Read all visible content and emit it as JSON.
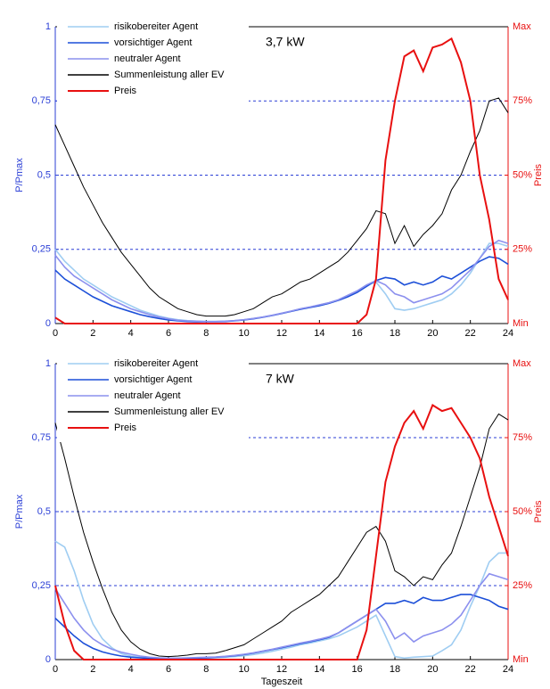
{
  "chart_data": [
    {
      "type": "line",
      "annotation": "3,7 kW",
      "ylabel": "P/Pmax",
      "y2label": "Preis",
      "x": [
        0,
        0.5,
        1,
        1.5,
        2,
        2.5,
        3,
        3.5,
        4,
        4.5,
        5,
        5.5,
        6,
        6.5,
        7,
        7.5,
        8,
        8.5,
        9,
        9.5,
        10,
        10.5,
        11,
        11.5,
        12,
        12.5,
        13,
        13.5,
        14,
        14.5,
        15,
        15.5,
        16,
        16.5,
        17,
        17.5,
        18,
        18.5,
        19,
        19.5,
        20,
        20.5,
        21,
        21.5,
        22,
        22.5,
        23,
        23.5,
        24
      ],
      "xlim": [
        0,
        24
      ],
      "xticks": [
        0,
        2,
        4,
        6,
        8,
        10,
        12,
        14,
        16,
        18,
        20,
        22,
        24
      ],
      "ylim": [
        0,
        1
      ],
      "yticks": [
        0,
        {
          "value": 0.25,
          "label": "0,25"
        },
        {
          "value": 0.5,
          "label": "0,5"
        },
        {
          "value": 0.75,
          "label": "0,75"
        },
        1
      ],
      "y2lim": [
        0,
        100
      ],
      "y2ticks": [
        {
          "value": 0,
          "label": "Min"
        },
        {
          "value": 25,
          "label": "25%"
        },
        {
          "value": 50,
          "label": "50%"
        },
        {
          "value": 75,
          "label": "75%"
        },
        {
          "value": 100,
          "label": "Max"
        }
      ],
      "grid": true,
      "legend": "upper left",
      "series": [
        {
          "name": "risikobereiter Agent",
          "color": "#9fcdf2",
          "values": [
            0.25,
            0.21,
            0.18,
            0.15,
            0.13,
            0.11,
            0.09,
            0.075,
            0.06,
            0.045,
            0.035,
            0.025,
            0.018,
            0.013,
            0.01,
            0.008,
            0.007,
            0.007,
            0.008,
            0.01,
            0.013,
            0.017,
            0.022,
            0.028,
            0.035,
            0.042,
            0.05,
            0.056,
            0.063,
            0.07,
            0.08,
            0.095,
            0.11,
            0.13,
            0.14,
            0.1,
            0.05,
            0.045,
            0.05,
            0.06,
            0.07,
            0.08,
            0.1,
            0.13,
            0.17,
            0.22,
            0.27,
            0.27,
            0.26
          ]
        },
        {
          "name": "vorsichtiger Agent",
          "color": "#1c4fd8",
          "values": [
            0.18,
            0.15,
            0.13,
            0.11,
            0.09,
            0.075,
            0.06,
            0.05,
            0.04,
            0.03,
            0.023,
            0.017,
            0.012,
            0.009,
            0.007,
            0.006,
            0.006,
            0.006,
            0.007,
            0.009,
            0.012,
            0.016,
            0.021,
            0.027,
            0.034,
            0.041,
            0.048,
            0.054,
            0.06,
            0.068,
            0.078,
            0.09,
            0.105,
            0.125,
            0.145,
            0.155,
            0.15,
            0.13,
            0.14,
            0.13,
            0.14,
            0.16,
            0.15,
            0.17,
            0.19,
            0.21,
            0.225,
            0.22,
            0.2
          ]
        },
        {
          "name": "neutraler Agent",
          "color": "#8c90ee",
          "values": [
            0.23,
            0.19,
            0.16,
            0.14,
            0.12,
            0.1,
            0.08,
            0.065,
            0.05,
            0.04,
            0.03,
            0.022,
            0.016,
            0.011,
            0.009,
            0.008,
            0.007,
            0.007,
            0.008,
            0.01,
            0.013,
            0.017,
            0.022,
            0.028,
            0.035,
            0.042,
            0.05,
            0.056,
            0.063,
            0.07,
            0.08,
            0.095,
            0.11,
            0.13,
            0.145,
            0.13,
            0.1,
            0.09,
            0.07,
            0.08,
            0.09,
            0.1,
            0.12,
            0.15,
            0.18,
            0.22,
            0.26,
            0.28,
            0.27
          ]
        },
        {
          "name": "Summenleistung aller EV",
          "color": "#000000",
          "values": [
            0.67,
            0.6,
            0.53,
            0.46,
            0.4,
            0.34,
            0.29,
            0.24,
            0.2,
            0.16,
            0.12,
            0.09,
            0.07,
            0.05,
            0.04,
            0.03,
            0.025,
            0.025,
            0.025,
            0.03,
            0.04,
            0.05,
            0.07,
            0.09,
            0.1,
            0.12,
            0.14,
            0.15,
            0.17,
            0.19,
            0.21,
            0.24,
            0.28,
            0.32,
            0.38,
            0.37,
            0.27,
            0.33,
            0.26,
            0.3,
            0.33,
            0.37,
            0.45,
            0.5,
            0.58,
            0.65,
            0.75,
            0.76,
            0.71
          ]
        },
        {
          "name": "Preis",
          "color": "#e81010",
          "axis": "y2",
          "values": [
            2,
            0,
            0,
            0,
            0,
            0,
            0,
            0,
            0,
            0,
            0,
            0,
            0,
            0,
            0,
            0,
            0,
            0,
            0,
            0,
            0,
            0,
            0,
            0,
            0,
            0,
            0,
            0,
            0,
            0,
            0,
            0,
            0,
            3,
            15,
            55,
            75,
            90,
            92,
            85,
            93,
            94,
            96,
            88,
            75,
            50,
            35,
            15,
            8
          ]
        }
      ]
    },
    {
      "type": "line",
      "annotation": "7 kW",
      "ylabel": "P/Pmax",
      "y2label": "Preis",
      "xlabel": "Tageszeit",
      "x": [
        0,
        0.5,
        1,
        1.5,
        2,
        2.5,
        3,
        3.5,
        4,
        4.5,
        5,
        5.5,
        6,
        6.5,
        7,
        7.5,
        8,
        8.5,
        9,
        9.5,
        10,
        10.5,
        11,
        11.5,
        12,
        12.5,
        13,
        13.5,
        14,
        14.5,
        15,
        15.5,
        16,
        16.5,
        17,
        17.5,
        18,
        18.5,
        19,
        19.5,
        20,
        20.5,
        21,
        21.5,
        22,
        22.5,
        23,
        23.5,
        24
      ],
      "xlim": [
        0,
        24
      ],
      "xticks": [
        0,
        2,
        4,
        6,
        8,
        10,
        12,
        14,
        16,
        18,
        20,
        22,
        24
      ],
      "ylim": [
        0,
        1
      ],
      "yticks": [
        0,
        {
          "value": 0.25,
          "label": "0,25"
        },
        {
          "value": 0.5,
          "label": "0,5"
        },
        {
          "value": 0.75,
          "label": "0,75"
        },
        1
      ],
      "y2lim": [
        0,
        100
      ],
      "y2ticks": [
        {
          "value": 0,
          "label": "Min"
        },
        {
          "value": 25,
          "label": "25%"
        },
        {
          "value": 50,
          "label": "50%"
        },
        {
          "value": 75,
          "label": "75%"
        },
        {
          "value": 100,
          "label": "Max"
        }
      ],
      "grid": true,
      "legend": "upper left",
      "series": [
        {
          "name": "risikobereiter Agent",
          "color": "#9fcdf2",
          "values": [
            0.4,
            0.38,
            0.3,
            0.2,
            0.12,
            0.07,
            0.04,
            0.02,
            0.012,
            0.008,
            0.005,
            0.004,
            0.003,
            0.003,
            0.003,
            0.004,
            0.005,
            0.006,
            0.008,
            0.01,
            0.013,
            0.017,
            0.022,
            0.028,
            0.035,
            0.042,
            0.05,
            0.056,
            0.063,
            0.07,
            0.08,
            0.095,
            0.11,
            0.13,
            0.15,
            0.08,
            0.01,
            0.005,
            0.008,
            0.01,
            0.012,
            0.03,
            0.05,
            0.1,
            0.18,
            0.25,
            0.33,
            0.36,
            0.36
          ]
        },
        {
          "name": "vorsichtiger Agent",
          "color": "#1c4fd8",
          "values": [
            0.14,
            0.11,
            0.08,
            0.055,
            0.038,
            0.026,
            0.018,
            0.012,
            0.008,
            0.006,
            0.004,
            0.003,
            0.003,
            0.003,
            0.004,
            0.005,
            0.006,
            0.008,
            0.01,
            0.013,
            0.017,
            0.022,
            0.028,
            0.034,
            0.04,
            0.047,
            0.054,
            0.06,
            0.067,
            0.075,
            0.09,
            0.11,
            0.13,
            0.15,
            0.17,
            0.19,
            0.19,
            0.2,
            0.19,
            0.21,
            0.2,
            0.2,
            0.21,
            0.22,
            0.22,
            0.21,
            0.2,
            0.18,
            0.17
          ]
        },
        {
          "name": "neutraler Agent",
          "color": "#8c90ee",
          "values": [
            0.24,
            0.19,
            0.14,
            0.1,
            0.07,
            0.05,
            0.035,
            0.025,
            0.018,
            0.012,
            0.008,
            0.006,
            0.005,
            0.005,
            0.006,
            0.007,
            0.008,
            0.009,
            0.011,
            0.014,
            0.018,
            0.023,
            0.029,
            0.035,
            0.042,
            0.049,
            0.056,
            0.062,
            0.069,
            0.077,
            0.09,
            0.11,
            0.13,
            0.15,
            0.17,
            0.13,
            0.07,
            0.09,
            0.06,
            0.08,
            0.09,
            0.1,
            0.12,
            0.15,
            0.2,
            0.25,
            0.29,
            0.28,
            0.27
          ]
        },
        {
          "name": "Summenleistung aller EV",
          "color": "#000000",
          "values": [
            0.8,
            0.68,
            0.55,
            0.43,
            0.33,
            0.24,
            0.16,
            0.1,
            0.06,
            0.035,
            0.02,
            0.012,
            0.01,
            0.012,
            0.015,
            0.02,
            0.02,
            0.022,
            0.03,
            0.04,
            0.05,
            0.07,
            0.09,
            0.11,
            0.13,
            0.16,
            0.18,
            0.2,
            0.22,
            0.25,
            0.28,
            0.33,
            0.38,
            0.43,
            0.45,
            0.4,
            0.3,
            0.28,
            0.25,
            0.28,
            0.27,
            0.32,
            0.36,
            0.45,
            0.55,
            0.65,
            0.78,
            0.83,
            0.81
          ]
        },
        {
          "name": "Preis",
          "color": "#e81010",
          "axis": "y2",
          "values": [
            25,
            12,
            3,
            0,
            0,
            0,
            0,
            0,
            0,
            0,
            0,
            0,
            0,
            0,
            0,
            0,
            0,
            0,
            0,
            0,
            0,
            0,
            0,
            0,
            0,
            0,
            0,
            0,
            0,
            0,
            0,
            0,
            0,
            10,
            35,
            60,
            72,
            80,
            84,
            78,
            86,
            84,
            85,
            80,
            75,
            68,
            55,
            45,
            35
          ]
        }
      ]
    }
  ]
}
